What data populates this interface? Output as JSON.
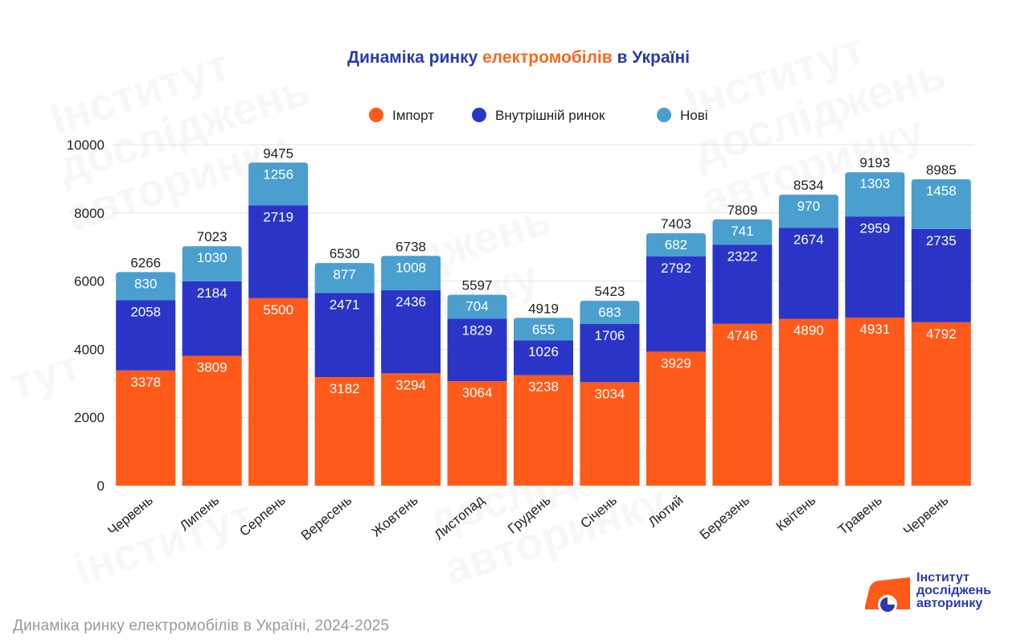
{
  "title_part1": "Динаміка ринку ",
  "title_part2": "електромобілів",
  "title_part3": " в Україні",
  "caption": "Динаміка ринку електромобілів в Україні, 2024-2025",
  "logo": {
    "line1": "Інститут",
    "line2": "досліджень",
    "line3": "авторинку"
  },
  "colors": {
    "import": "#ff5a19",
    "domestic": "#2a35c8",
    "new": "#4a9fcf",
    "title_blue": "#2b3aa8",
    "title_orange": "#f26a21",
    "grid": "#e6e6e6"
  },
  "chart_data": {
    "type": "bar",
    "stacked": true,
    "categories": [
      "Червень",
      "Липень",
      "Серпень",
      "Вересень",
      "Жовтень",
      "Листопад",
      "Грудень",
      "Січень",
      "Лютий",
      "Березень",
      "Квітень",
      "Травень",
      "Червень"
    ],
    "series": [
      {
        "name": "Імпорт",
        "color": "#ff5a19",
        "values": [
          3378,
          3809,
          5500,
          3182,
          3294,
          3064,
          3238,
          3034,
          3929,
          4746,
          4890,
          4931,
          4792
        ]
      },
      {
        "name": "Внутрішній ринок",
        "color": "#2a35c8",
        "values": [
          2058,
          2184,
          2719,
          2471,
          2436,
          1829,
          1026,
          1706,
          2792,
          2322,
          2674,
          2959,
          2735
        ]
      },
      {
        "name": "Нові",
        "color": "#4a9fcf",
        "values": [
          830,
          1030,
          1256,
          877,
          1008,
          704,
          655,
          683,
          682,
          741,
          970,
          1303,
          1458
        ]
      }
    ],
    "totals": [
      6266,
      7023,
      9475,
      6530,
      6738,
      5597,
      4919,
      5423,
      7403,
      7809,
      8534,
      9193,
      8985
    ],
    "ylim": [
      0,
      10000
    ],
    "yticks": [
      0,
      2000,
      4000,
      6000,
      8000,
      10000
    ],
    "grid": true,
    "legend_position": "top-center"
  }
}
